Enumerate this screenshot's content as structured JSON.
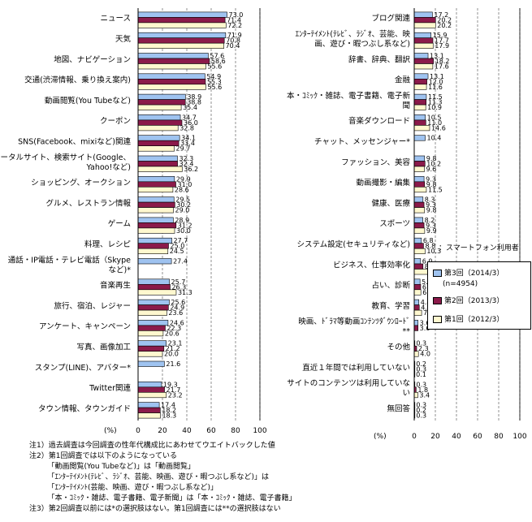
{
  "chart_data": [
    {
      "type": "bar",
      "orientation": "horizontal",
      "unit_label": "(%)",
      "xlim": [
        0,
        100
      ],
      "xticks": [
        0,
        20,
        40,
        60,
        80,
        100
      ],
      "series": [
        {
          "name": "第3回（2014/3）",
          "color": "#9fc3f0"
        },
        {
          "name": "第2回（2013/3）",
          "color": "#8b1a4a"
        },
        {
          "name": "第1回（2012/3）",
          "color": "#fff8cf"
        }
      ],
      "categories": [
        {
          "label": [
            "ニュース"
          ],
          "values": [
            73.0,
            71.4,
            72.2
          ]
        },
        {
          "label": [
            "天気"
          ],
          "values": [
            71.9,
            70.8,
            70.4
          ]
        },
        {
          "label": [
            "地図、ナビゲーション"
          ],
          "values": [
            57.6,
            58.6,
            55.6
          ]
        },
        {
          "label": [
            "交通(渋滞情報、乗り換え案内)"
          ],
          "values": [
            54.9,
            55.3,
            55.6
          ]
        },
        {
          "label": [
            "動画閲覧(You Tubeなど)"
          ],
          "values": [
            38.9,
            38.8,
            35.4
          ]
        },
        {
          "label": [
            "クーポン"
          ],
          "values": [
            34.7,
            36.0,
            32.8
          ]
        },
        {
          "label": [
            "SNS(Facebook、mixiなど)関連"
          ],
          "values": [
            34.1,
            33.4,
            29.7
          ]
        },
        {
          "label": [
            "ポータルサイト、検索サイト(Google、",
            "Yahoo!など)"
          ],
          "values": [
            32.3,
            32.4,
            36.2
          ]
        },
        {
          "label": [
            "ショッピング、オークション"
          ],
          "values": [
            29.9,
            31.0,
            28.6
          ]
        },
        {
          "label": [
            "グルメ、レストラン情報"
          ],
          "values": [
            29.5,
            30.2,
            29.0
          ]
        },
        {
          "label": [
            "ゲーム"
          ],
          "values": [
            28.9,
            31.2,
            30.0
          ]
        },
        {
          "label": [
            "料理、レシピ"
          ],
          "values": [
            27.7,
            25.0,
            24.5
          ]
        },
        {
          "label": [
            "通話・IP電話・テレビ電話（Skype",
            "など)*"
          ],
          "values": [
            27.4,
            null,
            null
          ]
        },
        {
          "label": [
            "音楽再生"
          ],
          "values": [
            25.7,
            26.3,
            31.3
          ]
        },
        {
          "label": [
            "旅行、宿泊、レジャー"
          ],
          "values": [
            25.6,
            24.9,
            23.6
          ]
        },
        {
          "label": [
            "アンケート、キャンペーン"
          ],
          "values": [
            24.6,
            22.3,
            20.6
          ]
        },
        {
          "label": [
            "写真、画像加工"
          ],
          "values": [
            23.1,
            21.2,
            20.0
          ]
        },
        {
          "label": [
            "スタンプ(LINE)、アバター*"
          ],
          "values": [
            21.6,
            null,
            null
          ]
        },
        {
          "label": [
            "Twitter関連"
          ],
          "values": [
            19.3,
            21.7,
            23.2
          ]
        },
        {
          "label": [
            "タウン情報、タウンガイド"
          ],
          "values": [
            17.4,
            18.2,
            18.3
          ]
        }
      ]
    },
    {
      "type": "bar",
      "orientation": "horizontal",
      "unit_label": "(%)",
      "xlim": [
        0,
        100
      ],
      "xticks": [
        0,
        20,
        40,
        60,
        80,
        100
      ],
      "categories": [
        {
          "label": [
            "ブログ関連"
          ],
          "values": [
            17.2,
            20.2,
            20.2
          ]
        },
        {
          "label": [
            "ｴﾝﾀｰﾃｲﾒﾝﾄ(ﾃﾚﾋﾞ、ﾗｼﾞｵ、芸能、映",
            "画、遊び・暇つぶし系など)"
          ],
          "values": [
            15.9,
            17.7,
            17.9
          ]
        },
        {
          "label": [
            "辞書、辞典、翻訳"
          ],
          "values": [
            13.1,
            18.2,
            17.6
          ]
        },
        {
          "label": [
            "金融"
          ],
          "values": [
            13.1,
            12.0,
            11.6
          ]
        },
        {
          "label": [
            "本・ｺﾐｯｸ・雑誌、電子書籍、電子新",
            "聞"
          ],
          "values": [
            11.5,
            11.3,
            10.9
          ]
        },
        {
          "label": [
            "音楽ダウンロード"
          ],
          "values": [
            10.5,
            11.0,
            14.6
          ]
        },
        {
          "label": [
            "チャット、メッセンジャー*"
          ],
          "values": [
            10.4,
            null,
            null
          ]
        },
        {
          "label": [
            "ファッション、美容"
          ],
          "values": [
            9.8,
            10.2,
            9.6
          ]
        },
        {
          "label": [
            "動画撮影・編集"
          ],
          "values": [
            9.3,
            9.8,
            11.5
          ]
        },
        {
          "label": [
            "健康、医療"
          ],
          "values": [
            8.3,
            9.3,
            9.8
          ]
        },
        {
          "label": [
            "スポーツ"
          ],
          "values": [
            8.2,
            9.3,
            9.9
          ]
        },
        {
          "label": [
            "システム設定(セキュリティなど)"
          ],
          "values": [
            6.8,
            8.8,
            10.3
          ]
        },
        {
          "label": [
            "ビジネス、仕事効率化"
          ],
          "values": [
            6.0,
            8.3,
            12.7
          ]
        },
        {
          "label": [
            "占い、診断"
          ],
          "values": [
            5.5,
            6.1,
            6.3
          ]
        },
        {
          "label": [
            "教育、学習"
          ],
          "values": [
            4.4,
            4.8,
            7.0
          ]
        },
        {
          "label": [
            "映画、ﾄﾞﾗﾏ等動画ｺﾝﾃﾝﾂﾀﾞｳﾝﾛｰﾄﾞ",
            "**"
          ],
          "values": [
            3.6,
            3.6,
            null
          ]
        },
        {
          "label": [
            "その他"
          ],
          "values": [
            0.3,
            2.3,
            4.0
          ]
        },
        {
          "label": [
            "直近１年間では利用していない"
          ],
          "values": [
            0.2,
            0.3,
            0.1
          ]
        },
        {
          "label": [
            "サイトのコンテンツは利用していな",
            "い"
          ],
          "values": [
            0.3,
            1.8,
            3.4
          ]
        },
        {
          "label": [
            "無回答"
          ],
          "values": [
            0.3,
            0.2,
            0.3
          ]
        }
      ]
    }
  ],
  "legend": {
    "title": "：スマートフォン利用者",
    "items": [
      "第3回（2014/3）",
      "第2回（2013/3）",
      "第1回（2012/3）"
    ],
    "n_text": "(n=4954)"
  },
  "notes": [
    "注1）過去調査は今回調査の性年代構成比にあわせてウエイトバックした値",
    "注2）第1回調査では以下のようになっている",
    "　　　「動画閲覧(You Tubeなど)」は「動画閲覧」",
    "　　　「ｴﾝﾀｰﾃｲﾒﾝﾄ(ﾃﾚﾋﾞ、ﾗｼﾞｵ、芸能、映画、遊び・暇つぶし系など)」は",
    "　　　「ｴﾝﾀｰﾃｲﾒﾝﾄ(芸能、映画、遊び・暇つぶし系など)」",
    "　　　「本・ｺﾐｯｸ・雑誌、電子書籍、電子新聞」は「本・ｺﾐｯｸ・雑誌、電子書籍」",
    "注3）第2回調査以前には*の選択肢はない。第1回調査には**の選択肢はない"
  ]
}
